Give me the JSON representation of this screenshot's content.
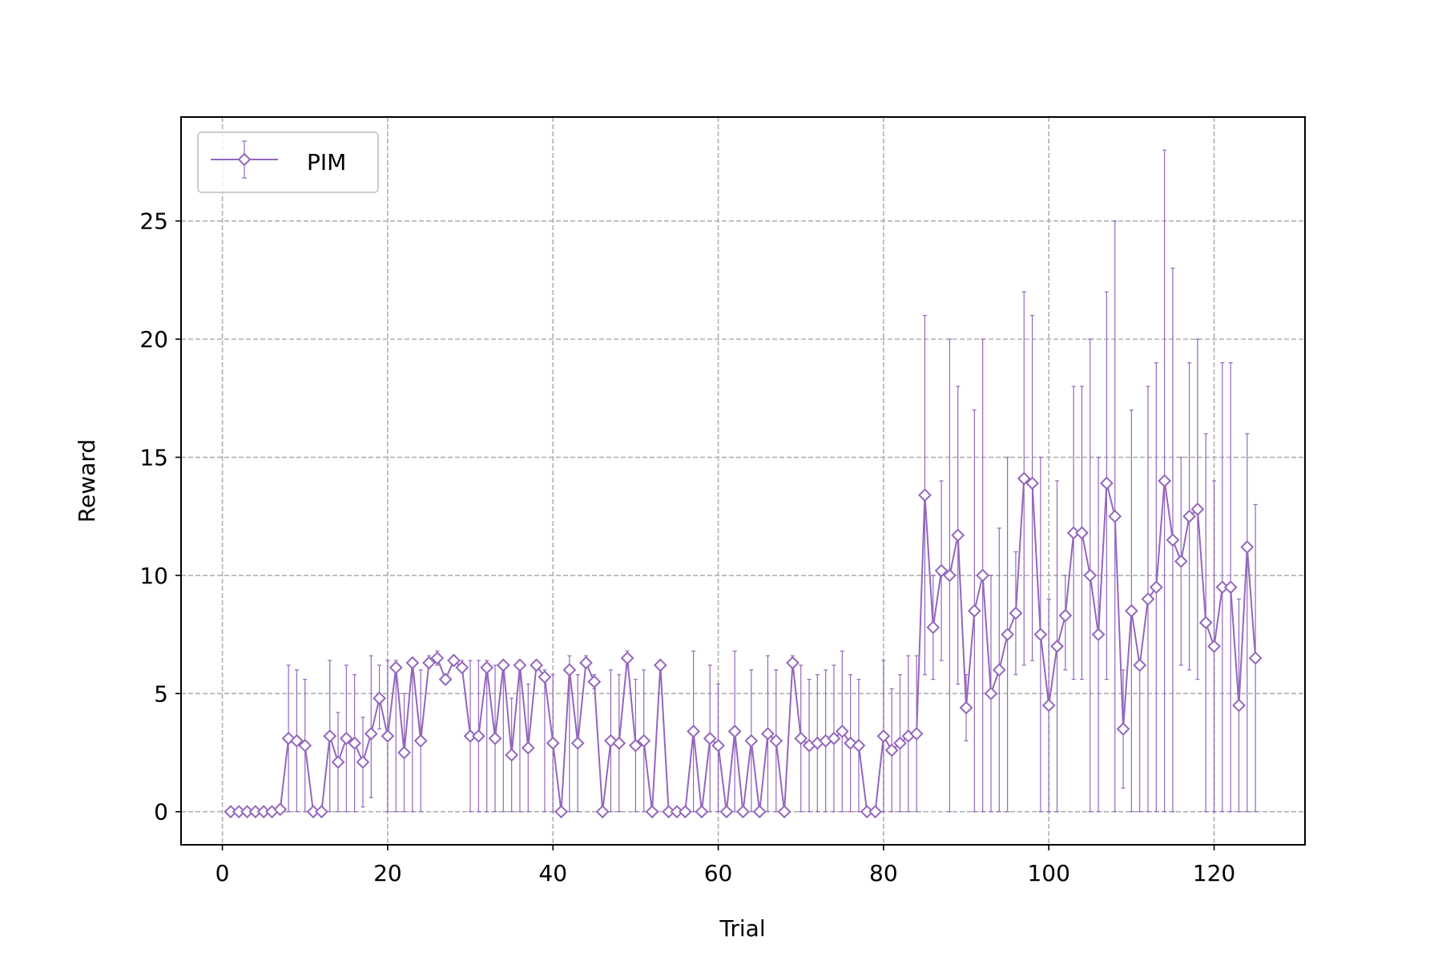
{
  "chart_data": {
    "type": "line",
    "title": "",
    "xlabel": "Trial",
    "ylabel": "Reward",
    "xlim": [
      -5,
      131
    ],
    "ylim": [
      -1.4,
      29.4
    ],
    "x_ticks": [
      0,
      20,
      40,
      60,
      80,
      100,
      120
    ],
    "y_ticks": [
      0,
      5,
      10,
      15,
      20,
      25
    ],
    "grid": true,
    "legend_position": "upper left",
    "series": [
      {
        "name": "PIM",
        "color": "#9467bd",
        "marker": "diamond",
        "error_bars": true,
        "x": [
          1,
          2,
          3,
          4,
          5,
          6,
          7,
          8,
          9,
          10,
          11,
          12,
          13,
          14,
          15,
          16,
          17,
          18,
          19,
          20,
          21,
          22,
          23,
          24,
          25,
          26,
          27,
          28,
          29,
          30,
          31,
          32,
          33,
          34,
          35,
          36,
          37,
          38,
          39,
          40,
          41,
          42,
          43,
          44,
          45,
          46,
          47,
          48,
          49,
          50,
          51,
          52,
          53,
          54,
          55,
          56,
          57,
          58,
          59,
          60,
          61,
          62,
          63,
          64,
          65,
          66,
          67,
          68,
          69,
          70,
          71,
          72,
          73,
          74,
          75,
          76,
          77,
          78,
          79,
          80,
          81,
          82,
          83,
          84,
          85,
          86,
          87,
          88,
          89,
          90,
          91,
          92,
          93,
          94,
          95,
          96,
          97,
          98,
          99,
          100,
          101,
          102,
          103,
          104,
          105,
          106,
          107,
          108,
          109,
          110,
          111,
          112,
          113,
          114,
          115,
          116,
          117,
          118,
          119,
          120,
          121,
          122,
          123,
          124,
          125
        ],
        "y": [
          0,
          0,
          0,
          0,
          0,
          0,
          0.1,
          3.1,
          3.0,
          2.8,
          0,
          0,
          3.2,
          2.1,
          3.1,
          2.9,
          2.1,
          3.3,
          4.8,
          3.2,
          6.1,
          2.5,
          6.3,
          3.0,
          6.3,
          6.5,
          5.6,
          6.4,
          6.1,
          3.2,
          3.2,
          6.1,
          3.1,
          6.2,
          2.4,
          6.2,
          2.7,
          6.2,
          5.7,
          2.9,
          0,
          6.0,
          2.9,
          6.3,
          5.5,
          0,
          3.0,
          2.9,
          6.5,
          2.8,
          3.0,
          0,
          6.2,
          0,
          0,
          0,
          3.4,
          0,
          3.1,
          2.8,
          0,
          3.4,
          0,
          3.0,
          0,
          3.3,
          3.0,
          0,
          6.3,
          3.1,
          2.8,
          2.9,
          3.0,
          3.1,
          3.4,
          2.9,
          2.8,
          0,
          0,
          3.2,
          2.6,
          2.9,
          3.2,
          3.3,
          13.4,
          7.8,
          10.2,
          10.0,
          11.7,
          4.4,
          8.5,
          10.0,
          5.0,
          6.0,
          7.5,
          8.4,
          14.1,
          13.9,
          7.5,
          4.5,
          7.0,
          8.3,
          11.8,
          11.8,
          10.0,
          7.5,
          13.9,
          12.5,
          3.5,
          8.5,
          6.2,
          9.0,
          9.5,
          14.0,
          11.5,
          10.6,
          12.5,
          12.8,
          8.0,
          7.0,
          9.5,
          9.5,
          4.5,
          11.2,
          6.5
        ],
        "err_low": [
          0,
          0,
          0,
          0,
          0,
          0,
          0,
          0,
          0,
          0,
          0,
          0,
          0,
          0,
          0,
          0,
          0.2,
          0.6,
          3.5,
          0,
          0,
          0,
          0,
          0,
          6.1,
          6.2,
          5.4,
          6.2,
          5.9,
          0,
          0,
          0,
          0,
          0,
          0,
          0,
          0,
          6.0,
          0,
          0,
          0,
          0,
          0,
          6.1,
          5.2,
          0,
          0,
          0,
          6.2,
          0,
          0,
          0,
          6.0,
          0,
          0,
          0,
          0,
          0,
          0,
          0,
          0,
          0,
          0,
          0,
          0,
          0,
          0,
          0,
          6.1,
          0,
          0,
          0,
          0,
          0,
          0,
          0,
          0,
          0,
          0,
          0,
          0,
          0,
          0,
          0,
          5.8,
          5.6,
          6.4,
          0,
          5.4,
          3.0,
          0,
          0,
          0,
          0,
          0,
          5.8,
          6.2,
          6.4,
          0,
          0,
          0,
          6.0,
          5.6,
          5.6,
          0,
          0,
          5.6,
          0,
          1.0,
          0,
          0,
          0,
          0,
          0,
          0,
          6.2,
          6.0,
          5.6,
          0,
          0,
          0,
          0,
          0,
          0,
          0
        ],
        "err_high": [
          0,
          0,
          0,
          0,
          0,
          0,
          0.3,
          6.2,
          6.0,
          5.6,
          0,
          0,
          6.4,
          4.2,
          6.2,
          5.8,
          4.0,
          6.6,
          6.2,
          6.4,
          6.4,
          5.0,
          6.4,
          6.0,
          6.6,
          6.8,
          5.8,
          6.6,
          6.4,
          6.4,
          6.4,
          6.4,
          6.2,
          6.4,
          4.8,
          6.4,
          5.4,
          6.4,
          6.0,
          5.8,
          0,
          6.6,
          5.8,
          6.6,
          5.8,
          0,
          6.0,
          5.8,
          6.8,
          5.6,
          6.0,
          0,
          6.4,
          0,
          0,
          0,
          6.8,
          0,
          6.2,
          5.4,
          0,
          6.8,
          0,
          6.0,
          0,
          6.6,
          6.0,
          0,
          6.6,
          6.2,
          5.6,
          5.8,
          6.0,
          6.2,
          6.8,
          5.8,
          5.6,
          0,
          0,
          6.4,
          5.2,
          5.8,
          6.6,
          6.6,
          21.0,
          10.0,
          14.0,
          20.0,
          18.0,
          5.8,
          17.0,
          20.0,
          10.0,
          12.0,
          15.0,
          11.0,
          22.0,
          21.0,
          15.0,
          9.0,
          14.0,
          10.0,
          18.0,
          18.0,
          20.0,
          15.0,
          22.0,
          25.0,
          6.0,
          17.0,
          6.4,
          18.0,
          19.0,
          28.0,
          23.0,
          15.0,
          19.0,
          20.0,
          16.0,
          14.0,
          19.0,
          19.0,
          9.0,
          16.0,
          13.0
        ]
      }
    ]
  }
}
